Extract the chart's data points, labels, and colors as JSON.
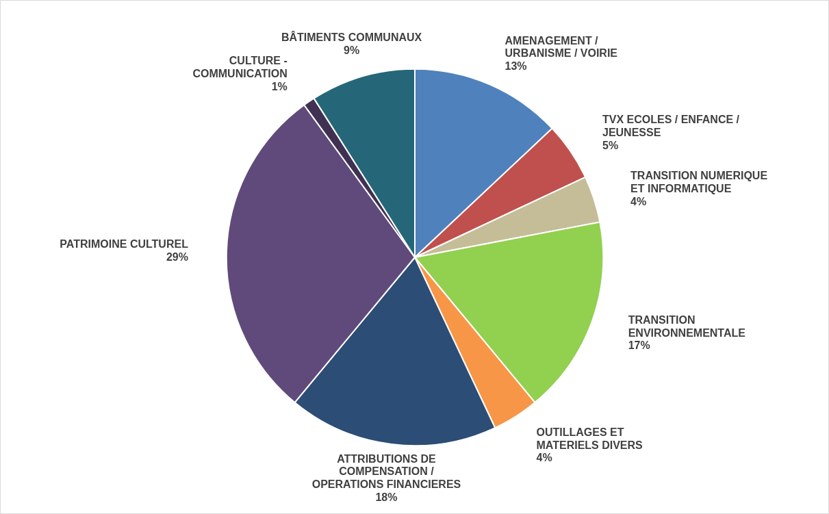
{
  "chart_data": {
    "type": "pie",
    "categories": [
      "AMENAGEMENT / URBANISME / VOIRIE",
      "TVX ECOLES / ENFANCE / JEUNESSE",
      "TRANSITION NUMERIQUE ET INFORMATIQUE",
      "TRANSITION ENVIRONNEMENTALE",
      "OUTILLAGES ET MATERIELS DIVERS",
      "ATTRIBUTIONS DE COMPENSATION / OPERATIONS FINANCIERES",
      "PATRIMOINE CULTUREL",
      "CULTURE - COMMUNICATION",
      "BÂTIMENTS COMMUNAUX"
    ],
    "values": [
      13,
      5,
      4,
      17,
      4,
      18,
      29,
      1,
      9
    ],
    "value_labels": [
      "13%",
      "5%",
      "4%",
      "17%",
      "4%",
      "18%",
      "29%",
      "1%",
      "9%"
    ],
    "colors": [
      "#4f81bd",
      "#c0504d",
      "#c4bd97",
      "#92d050",
      "#f79646",
      "#2c4d75",
      "#604a7b",
      "#403152",
      "#256779"
    ],
    "legend": false
  }
}
